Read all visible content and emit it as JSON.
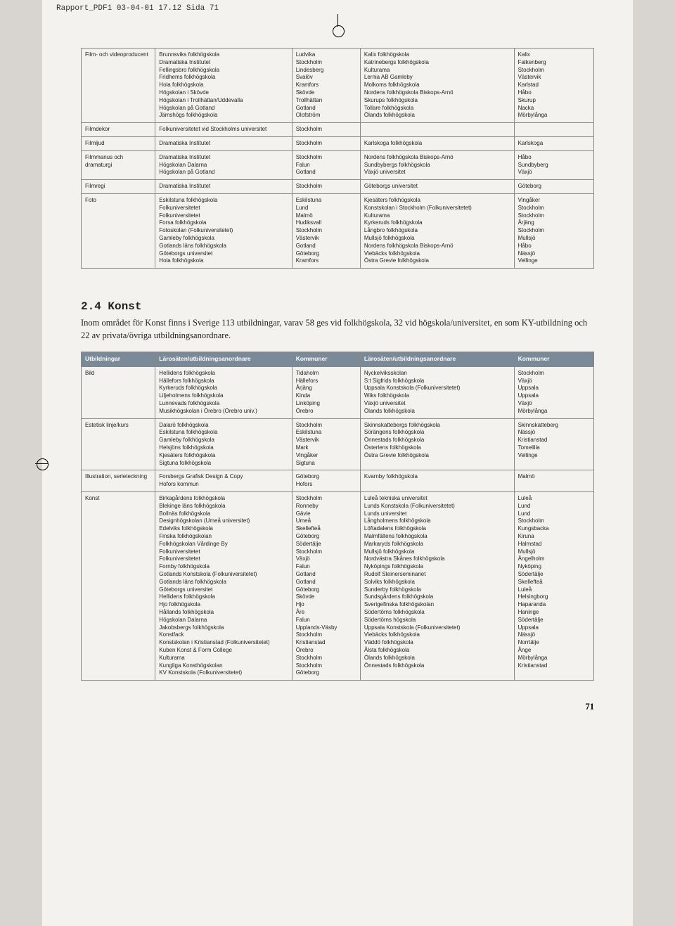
{
  "header_line": "Rapport_PDF1  03-04-01  17.12  Sida 71",
  "page_number": "71",
  "table1": {
    "rows": [
      {
        "cat": "Film- och videoproducent",
        "l1": [
          "Brunnsviks folkhögskola",
          "Dramatiska Institutet",
          "Fellingsbro folkhögskola",
          "Fridhems folkhögskola",
          "Hola folkhögskola",
          "Högskolan i Skövde",
          "Högskolan i Trollhättan/Uddevalla",
          "Högskolan på Gotland",
          "Jämshögs folkhögskola"
        ],
        "k1": [
          "Ludvika",
          "Stockholm",
          "Lindesberg",
          "Svalöv",
          "Kramfors",
          "Skövde",
          "Trollhättan",
          "Gotland",
          "Olofström"
        ],
        "l2": [
          "Kalix folkhögskola",
          "Katrinebergs folkhögskola",
          "Kulturama",
          "Lernia AB Gamleby",
          "Molkoms folkhögskola",
          "Nordens folkhögskola Biskops-Arnö",
          "Skurups folkhögskola",
          "Tollare folkhögskola",
          "Ölands folkhögskola"
        ],
        "k2": [
          "Kalix",
          "Falkenberg",
          "Stockholm",
          "Västervik",
          "Karlstad",
          "Håbo",
          "Skurup",
          "Nacka",
          "Mörbylånga"
        ]
      },
      {
        "cat": "Filmdekor",
        "l1": [
          "Folkuniversitetet vid Stockholms universitet"
        ],
        "k1": [
          "Stockholm"
        ],
        "l2": [],
        "k2": []
      },
      {
        "cat": "Filmljud",
        "l1": [
          "Dramatiska Institutet"
        ],
        "k1": [
          "Stockholm"
        ],
        "l2": [
          "Karlskoga folkhögskola"
        ],
        "k2": [
          "Karlskoga"
        ]
      },
      {
        "cat": "Filmmanus och dramaturgi",
        "l1": [
          "Dramatiska Institutet",
          "Högskolan Dalarna",
          "Högskolan på Gotland"
        ],
        "k1": [
          "Stockholm",
          "Falun",
          "Gotland"
        ],
        "l2": [
          "Nordens folkhögskola Biskops-Arnö",
          "Sundbybergs folkhögskola",
          "Växjö universitet"
        ],
        "k2": [
          "Håbo",
          "Sundbyberg",
          "Växjö"
        ]
      },
      {
        "cat": "Filmregi",
        "l1": [
          "Dramatiska Institutet"
        ],
        "k1": [
          "Stockholm"
        ],
        "l2": [
          "Göteborgs universitet"
        ],
        "k2": [
          "Göteborg"
        ]
      },
      {
        "cat": "Foto",
        "l1": [
          "Eskilstuna folkhögskola",
          "Folkuniversitetet",
          "Folkuniversitetet",
          "Forsa folkhögskola",
          "Fotoskolan (Folkuniversitetet)",
          "Gamleby folkhögskola",
          "Gotlands läns folkhögskola",
          "Göteborgs universitet",
          "Hola folkhögskola"
        ],
        "k1": [
          "Eskilstuna",
          "Lund",
          "Malmö",
          "Hudiksvall",
          "Stockholm",
          "Västervik",
          "Gotland",
          "Göteborg",
          "Kramfors"
        ],
        "l2": [
          "Kjesäters folkhögskola",
          "Konstskolan i Stockholm (Folkuniversitetet)",
          "Kulturama",
          "Kyrkeruds folkhögskola",
          "Långbro folkhögskola",
          "Mullsjö folkhögskola",
          "Nordens folkhögskola Biskops-Arnö",
          "Viebäcks folkhögskola",
          "Östra Grevie folkhögskola"
        ],
        "k2": [
          "Vingåker",
          "Stockholm",
          "Stockholm",
          "Årjäng",
          "Stockholm",
          "Mullsjö",
          "Håbo",
          "Nässjö",
          "Vellinge"
        ]
      }
    ]
  },
  "section": {
    "heading": "2.4 Konst",
    "body": "Inom området för Konst finns i Sverige 113 utbildningar, varav 58 ges vid folkhögskola, 32 vid högskola/universitet, en som KY-utbildning och 22 av privata/övriga utbildningsanordnare."
  },
  "table2": {
    "headers": [
      "Utbildningar",
      "Lärosäten/utbildningsanordnare",
      "Kommuner",
      "Lärosäten/utbildningsanordnare",
      "Kommuner"
    ],
    "rows": [
      {
        "cat": "Bild",
        "l1": [
          "Hellidens folkhögskola",
          "Hällefors folkhögskola",
          "Kyrkeruds folkhögskola",
          "Liljeholmens folkhögskola",
          "Lunnevads folkhögskola",
          "Musikhögskolan i Örebro (Örebro univ.)"
        ],
        "k1": [
          "Tidaholm",
          "Hällefors",
          "Årjäng",
          "Kinda",
          "Linköping",
          "Örebro"
        ],
        "l2": [
          "Nyckelviksskolan",
          "S:t Sigfrids folkhögskola",
          "Uppsala Konstskola (Folkuniversitetet)",
          "Wiks folkhögskola",
          "Växjö universitet",
          "Ölands folkhögskola"
        ],
        "k2": [
          "Stockholm",
          "Växjö",
          "Uppsala",
          "Uppsala",
          "Växjö",
          "Mörbylånga"
        ]
      },
      {
        "cat": "Estetisk linje/kurs",
        "l1": [
          "Dalarö folkhögskola",
          "Eskilstuna folkhögskola",
          "Gamleby folkhögskola",
          "Helsjöns folkhögskola",
          "Kjesäters folkhögskola",
          "Sigtuna folkhögskola"
        ],
        "k1": [
          "Stockholm",
          "Eskilstuna",
          "Västervik",
          "Mark",
          "Vingåker",
          "Sigtuna"
        ],
        "l2": [
          "Skinnskattebergs folkhögskola",
          "Sörängens folkhögskola",
          "Önnestads folkhögskola",
          "Österlens folkhögskola",
          "Östra Grevie folkhögskola"
        ],
        "k2": [
          "Skinnskatteberg",
          "Nässjö",
          "Kristianstad",
          "Tomelilla",
          "Vellinge"
        ]
      },
      {
        "cat": "Illustration, serieteckning",
        "l1": [
          "Forsbergs Grafisk Design & Copy",
          "Hofors kommun"
        ],
        "k1": [
          "Göteborg",
          "Hofors"
        ],
        "l2": [
          "Kvarnby folkhögskola"
        ],
        "k2": [
          "Malmö"
        ]
      },
      {
        "cat": "Konst",
        "l1": [
          "Birkagårdens folkhögskola",
          "Blekinge läns folkhögskola",
          "Bollnäs folkhögskola",
          "Designhögskolan (Umeå universitet)",
          "Edelviks folkhögskola",
          "Finska folkhögskolan",
          "Folkhögskolan Vårdinge By",
          "Folkuniversitetet",
          "Folkuniversitetet",
          "Fornby folkhögskola",
          "Gotlands Konstskola (Folkuniversitetet)",
          "Gotlands läns folkhögskola",
          "Göteborgs universitet",
          "Hellidens folkhögskola",
          "Hjo folkhögskola",
          "Hållands folkhögskola",
          "Högskolan Dalarna",
          "Jakobsbergs folkhögskola",
          "Konstfack",
          "Konstskolan i Kristianstad (Folkuniversitetet)",
          "Kuben Konst & Form College",
          "Kulturama",
          "Kungliga Konsthögskolan",
          "KV Konstskola (Folkuniversitetet)"
        ],
        "k1": [
          "Stockholm",
          "Ronneby",
          "Gävle",
          "Umeå",
          "Skellefteå",
          "Göteborg",
          "Södertälje",
          "Stockholm",
          "Växjö",
          "Falun",
          "Gotland",
          "Gotland",
          "Göteborg",
          "Skövde",
          "Hjo",
          "Åre",
          "Falun",
          "Upplands-Väsby",
          "Stockholm",
          "Kristianstad",
          "Örebro",
          "Stockholm",
          "Stockholm",
          "Göteborg"
        ],
        "l2": [
          "Luleå tekniska universitet",
          "Lunds Konstskola (Folkuniversitetet)",
          "Lunds universitet",
          "Långholmens folkhögskola",
          "Löftadalens folkhögskola",
          "Malmfältens folkhögskola",
          "Markaryds folkhögskola",
          "Mullsjö folkhögskola",
          "Nordvästra Skånes folkhögskola",
          "Nyköpings folkhögskola",
          "Rudolf Steinerseminariet",
          "Solviks folkhögskola",
          "Sunderby folkhögskola",
          "Sundsgårdens folkhögskola",
          "Sverigefinska folkhögskolan",
          "Södertörns folkhögskola",
          "Södertörns högskola",
          "Uppsala Konstskola (Folkuniversitetet)",
          "Viebäcks folkhögskola",
          "Väddö folkhögskola",
          "Ålsta folkhögskola",
          "Ölands folkhögskola",
          "Önnestads folkhögskola"
        ],
        "k2": [
          "Luleå",
          "Lund",
          "Lund",
          "Stockholm",
          "Kungsbacka",
          "Kiruna",
          "Halmstad",
          "Mullsjö",
          "Ängelholm",
          "Nyköping",
          "Södertälje",
          "Skellefteå",
          "Luleå",
          "Helsingborg",
          "Haparanda",
          "Haninge",
          "Södertälje",
          "Uppsala",
          "Nässjö",
          "Norrtälje",
          "Ånge",
          "Mörbylånga",
          "Kristianstad"
        ]
      }
    ]
  }
}
